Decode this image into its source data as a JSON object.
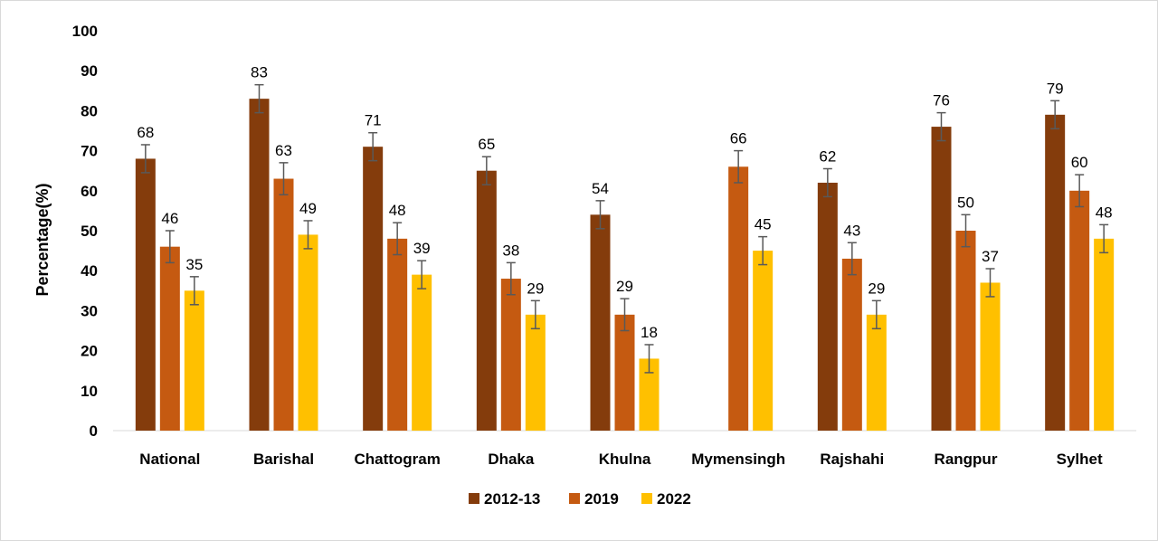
{
  "chart_data": {
    "type": "bar",
    "ylabel": "Percentage(%)",
    "xlabel": "",
    "ylim": [
      0,
      100
    ],
    "yticks": [
      0,
      10,
      20,
      30,
      40,
      50,
      60,
      70,
      80,
      90,
      100
    ],
    "categories": [
      "National",
      "Barishal",
      "Chattogram",
      "Dhaka",
      "Khulna",
      "Mymensingh",
      "Rajshahi",
      "Rangpur",
      "Sylhet"
    ],
    "series": [
      {
        "name": "2012-13",
        "color": "#843c0c",
        "values": [
          68,
          83,
          71,
          65,
          54,
          null,
          62,
          76,
          79
        ],
        "labels": [
          "68",
          "83",
          "71",
          "65",
          "54",
          "",
          "62",
          "76",
          "79"
        ],
        "errors": [
          3.5,
          3.5,
          3.5,
          3.5,
          3.5,
          null,
          3.5,
          3.5,
          3.5
        ]
      },
      {
        "name": "2019",
        "color": "#c55a11",
        "values": [
          46,
          63,
          48,
          38,
          29,
          66,
          43,
          50,
          60
        ],
        "labels": [
          "46",
          "63",
          "48",
          "38",
          "29",
          "66",
          "43",
          "50",
          "60"
        ],
        "errors": [
          4,
          4,
          4,
          4,
          4,
          4,
          4,
          4,
          4
        ]
      },
      {
        "name": "2022",
        "color": "#ffc000",
        "values": [
          35,
          49,
          39,
          29,
          18,
          45,
          29,
          37,
          48
        ],
        "labels": [
          "35",
          "49",
          "39",
          "29",
          "18",
          "45",
          "29",
          "37",
          "48"
        ],
        "errors": [
          3.5,
          3.5,
          3.5,
          3.5,
          3.5,
          3.5,
          3.5,
          3.5,
          3.5
        ]
      }
    ],
    "legend": "bottom",
    "grid": false
  }
}
